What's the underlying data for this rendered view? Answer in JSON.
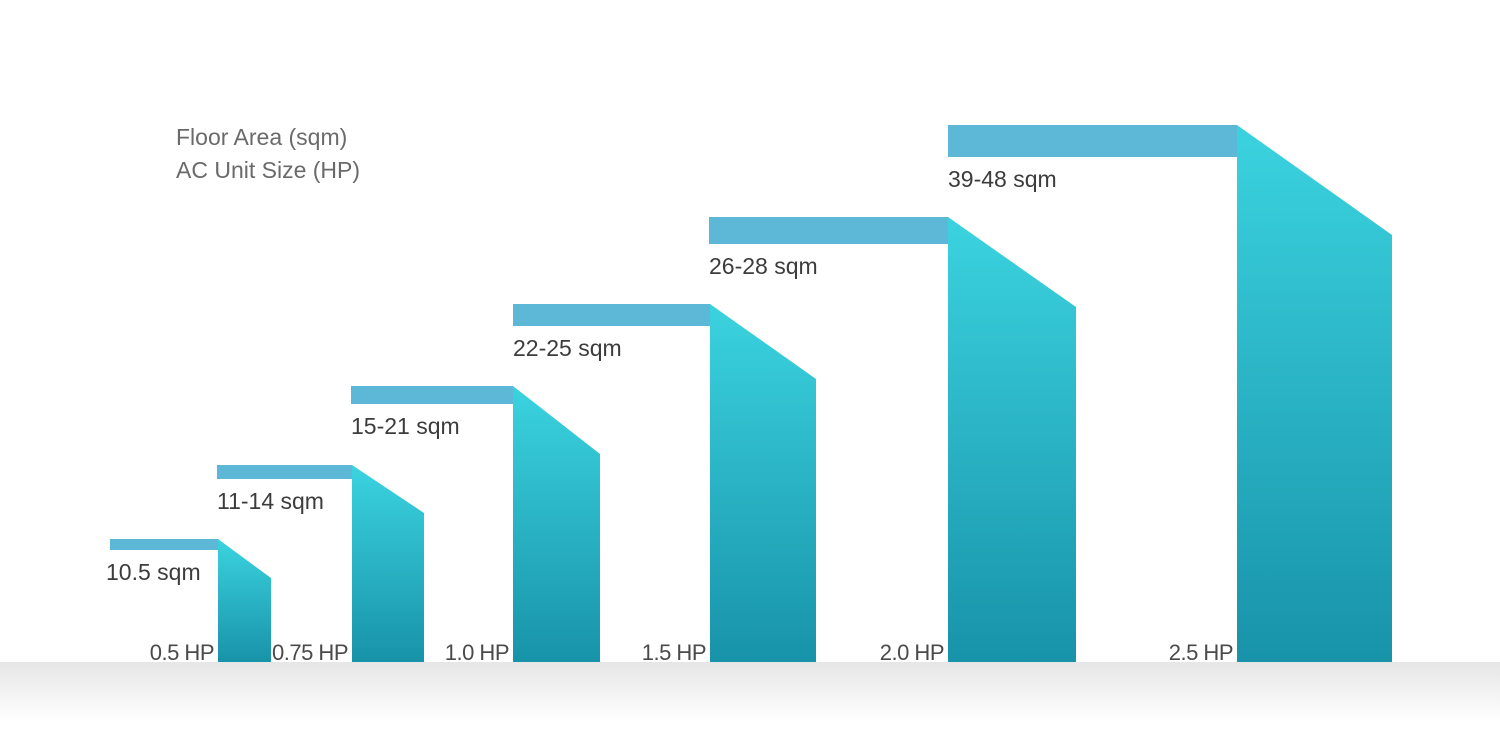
{
  "legend": {
    "line1": "Floor Area (sqm)",
    "line2": "AC Unit Size (HP)"
  },
  "colors": {
    "floor_bar": "#5db8d8",
    "unit_top": "#3bd3df",
    "unit_bottom": "#1893a9",
    "ground_shadow": "#ececec"
  },
  "chart_data": {
    "type": "bar",
    "categories": [
      "0.5 HP",
      "0.75 HP",
      "1.0 HP",
      "1.5 HP",
      "2.0 HP",
      "2.5 HP"
    ],
    "floor_area_labels": [
      "10.5 sqm",
      "11-14 sqm",
      "15-21 sqm",
      "22-25 sqm",
      "26-28 sqm",
      "39-48 sqm"
    ],
    "series": [
      {
        "name": "AC Unit Size (HP)",
        "values": [
          0.5,
          0.75,
          1.0,
          1.5,
          2.0,
          2.5
        ]
      }
    ],
    "xlabel": "",
    "ylabel": "",
    "grid": false
  }
}
